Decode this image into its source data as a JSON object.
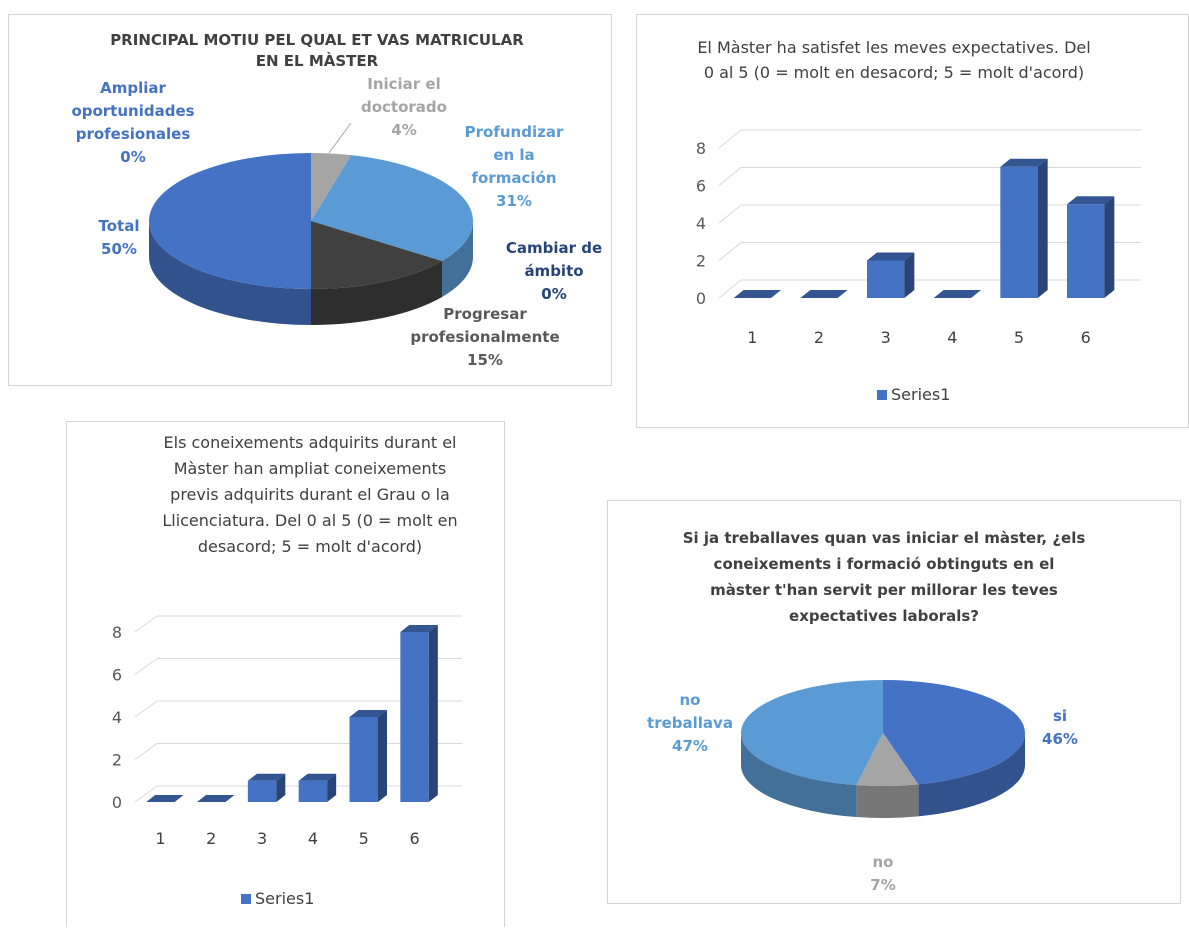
{
  "chart_data": [
    {
      "type": "pie",
      "title": "PRINCIPAL MOTIU PEL QUAL ET VAS MATRICULAR EN EL MÀSTER",
      "title_lines": [
        "PRINCIPAL MOTIU PEL QUAL ET VAS MATRICULAR",
        "EN EL MÀSTER"
      ],
      "three_d": true,
      "slices": [
        {
          "label": "Iniciar el doctorado",
          "label_lines": [
            "Iniciar el",
            "doctorado"
          ],
          "pct_label": "4%",
          "value": 4,
          "color": "#a5a5a5"
        },
        {
          "label": "Profundizar en la formación",
          "label_lines": [
            "Profundizar",
            "en la",
            "formación"
          ],
          "pct_label": "31%",
          "value": 31,
          "color": "#5b9bd5"
        },
        {
          "label": "Cambiar de ámbito",
          "label_lines": [
            "Cambiar de",
            "ámbito"
          ],
          "pct_label": "0%",
          "value": 0,
          "color": "#264478"
        },
        {
          "label": "Progresar profesionalmente",
          "label_lines": [
            "Progresar",
            "profesionalmente"
          ],
          "pct_label": "15%",
          "value": 15,
          "color": "#404040"
        },
        {
          "label": "Total",
          "label_lines": [
            "Total"
          ],
          "pct_label": "50%",
          "value": 50,
          "color": "#4472c4"
        },
        {
          "label": "Ampliar oportunidades profesionales",
          "label_lines": [
            "Ampliar",
            "oportunidades",
            "profesionales"
          ],
          "pct_label": "0%",
          "value": 0,
          "color": "#4472c4"
        }
      ]
    },
    {
      "type": "bar",
      "three_d": true,
      "title": "El Màster ha satisfet les meves expectatives. Del 0 al 5 (0 = molt en desacord; 5 = molt d'acord)",
      "title_lines": [
        "El Màster ha satisfet les meves expectatives. Del",
        "0 al 5 (0 = molt en desacord; 5 = molt d'acord)"
      ],
      "categories": [
        "1",
        "2",
        "3",
        "4",
        "5",
        "6"
      ],
      "series": [
        {
          "name": "Series1",
          "values": [
            0,
            0,
            2,
            0,
            7,
            5
          ]
        }
      ],
      "yticks": [
        "0",
        "2",
        "4",
        "6",
        "8"
      ],
      "ylim": [
        0,
        8
      ],
      "color": "#4472c4",
      "legend": "bottom"
    },
    {
      "type": "bar",
      "three_d": true,
      "title": "Els coneixements adquirits durant el Màster han ampliat coneixements previs adquirits durant el Grau o la Llicenciatura. Del 0 al 5 (0 = molt en desacord; 5 = molt d'acord)",
      "title_lines": [
        "Els coneixements adquirits durant el",
        "Màster han ampliat coneixements",
        "previs adquirits durant el Grau o la",
        "Llicenciatura. Del 0 al 5 (0 = molt en",
        "desacord; 5 = molt d'acord)"
      ],
      "categories": [
        "1",
        "2",
        "3",
        "4",
        "5",
        "6"
      ],
      "series": [
        {
          "name": "Series1",
          "values": [
            0,
            0,
            1,
            1,
            4,
            8
          ]
        }
      ],
      "yticks": [
        "0",
        "2",
        "4",
        "6",
        "8"
      ],
      "ylim": [
        0,
        8
      ],
      "color": "#4472c4",
      "legend": "bottom"
    },
    {
      "type": "pie",
      "three_d": true,
      "title": "Si ja treballaves quan vas iniciar el màster, ¿els coneixements i formació obtinguts en el màster t'han servit per millorar les teves expectatives laborals?",
      "title_lines": [
        "Si ja treballaves quan vas iniciar el màster, ¿els",
        "coneixements i formació obtinguts en el",
        "màster t'han servit per millorar les teves",
        "expectatives laborals?"
      ],
      "slices": [
        {
          "label": "si",
          "label_lines": [
            "si"
          ],
          "pct_label": "46%",
          "value": 46,
          "color": "#4472c4"
        },
        {
          "label": "no",
          "label_lines": [
            "no"
          ],
          "pct_label": "7%",
          "value": 7,
          "color": "#a5a5a5"
        },
        {
          "label": "no treballava",
          "label_lines": [
            "no",
            "treballava"
          ],
          "pct_label": "47%",
          "value": 47,
          "color": "#5b9bd5"
        }
      ]
    }
  ]
}
